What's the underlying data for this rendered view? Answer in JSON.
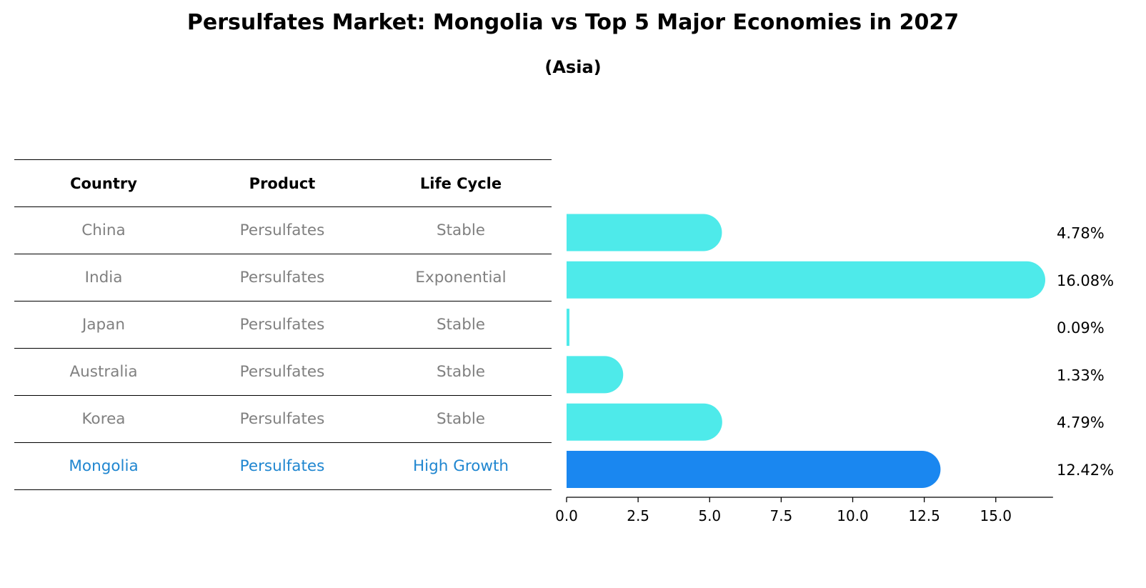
{
  "title": "Persulfates Market: Mongolia vs Top 5 Major Economies in 2027",
  "subtitle": "(Asia)",
  "table": {
    "headers": [
      "Country",
      "Product",
      "Life Cycle"
    ],
    "rows": [
      {
        "country": "China",
        "product": "Persulfates",
        "life_cycle": "Stable"
      },
      {
        "country": "India",
        "product": "Persulfates",
        "life_cycle": "Exponential"
      },
      {
        "country": "Japan",
        "product": "Persulfates",
        "life_cycle": "Stable"
      },
      {
        "country": "Australia",
        "product": "Persulfates",
        "life_cycle": "Stable"
      },
      {
        "country": "Korea",
        "product": "Persulfates",
        "life_cycle": "Stable"
      },
      {
        "country": "Mongolia",
        "product": "Persulfates",
        "life_cycle": "High Growth"
      }
    ]
  },
  "colors": {
    "bar": "#4eeaea",
    "highlight_bar": "#1a87f0",
    "highlight_text": "#1f86d0",
    "muted_text": "#808080"
  },
  "chart_data": {
    "type": "bar",
    "orientation": "horizontal",
    "categories": [
      "China",
      "India",
      "Japan",
      "Australia",
      "Korea",
      "Mongolia"
    ],
    "values": [
      4.78,
      16.08,
      0.09,
      1.33,
      4.79,
      12.42
    ],
    "value_labels": [
      "4.78%",
      "16.08%",
      "0.09%",
      "1.33%",
      "4.79%",
      "12.42%"
    ],
    "highlight": "Mongolia",
    "xlim": [
      0,
      17
    ],
    "xticks": [
      0,
      2.5,
      5,
      7.5,
      10,
      12.5,
      15
    ],
    "xtick_labels": [
      "0.0",
      "2.5",
      "5.0",
      "7.5",
      "10.0",
      "12.5",
      "15.0"
    ],
    "grid": false
  }
}
